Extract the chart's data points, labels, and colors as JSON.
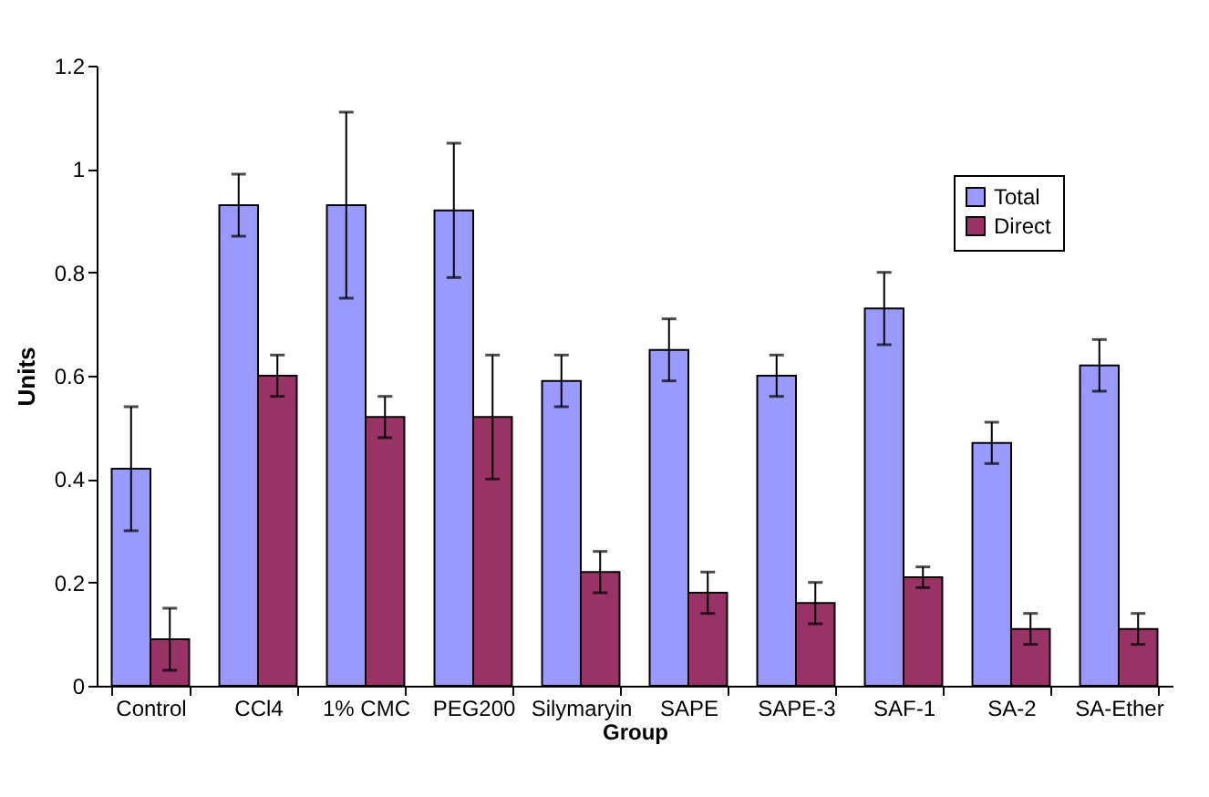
{
  "chart_data": {
    "type": "bar",
    "xlabel": "Group",
    "ylabel": "Units",
    "categories": [
      "Control",
      "CCl4",
      "1% CMC",
      "PEG200",
      "Silymaryin",
      "SAPE",
      "SAPE-3",
      "SAF-1",
      "SA-2",
      "SA-Ether"
    ],
    "series": [
      {
        "name": "Total",
        "color": "#9999ff",
        "values": [
          0.42,
          0.93,
          0.93,
          0.92,
          0.59,
          0.65,
          0.6,
          0.73,
          0.47,
          0.62
        ],
        "errors": [
          0.12,
          0.06,
          0.18,
          0.13,
          0.05,
          0.06,
          0.04,
          0.07,
          0.04,
          0.05
        ]
      },
      {
        "name": "Direct",
        "color": "#993366",
        "values": [
          0.09,
          0.6,
          0.52,
          0.52,
          0.22,
          0.18,
          0.16,
          0.21,
          0.11,
          0.11
        ],
        "errors": [
          0.06,
          0.04,
          0.04,
          0.12,
          0.04,
          0.04,
          0.04,
          0.02,
          0.03,
          0.03
        ]
      }
    ],
    "ylim": [
      0,
      1.2
    ],
    "yticks": [
      0,
      0.2,
      0.4,
      0.6,
      0.8,
      1,
      1.2
    ],
    "grid": false,
    "legend": "top right"
  }
}
